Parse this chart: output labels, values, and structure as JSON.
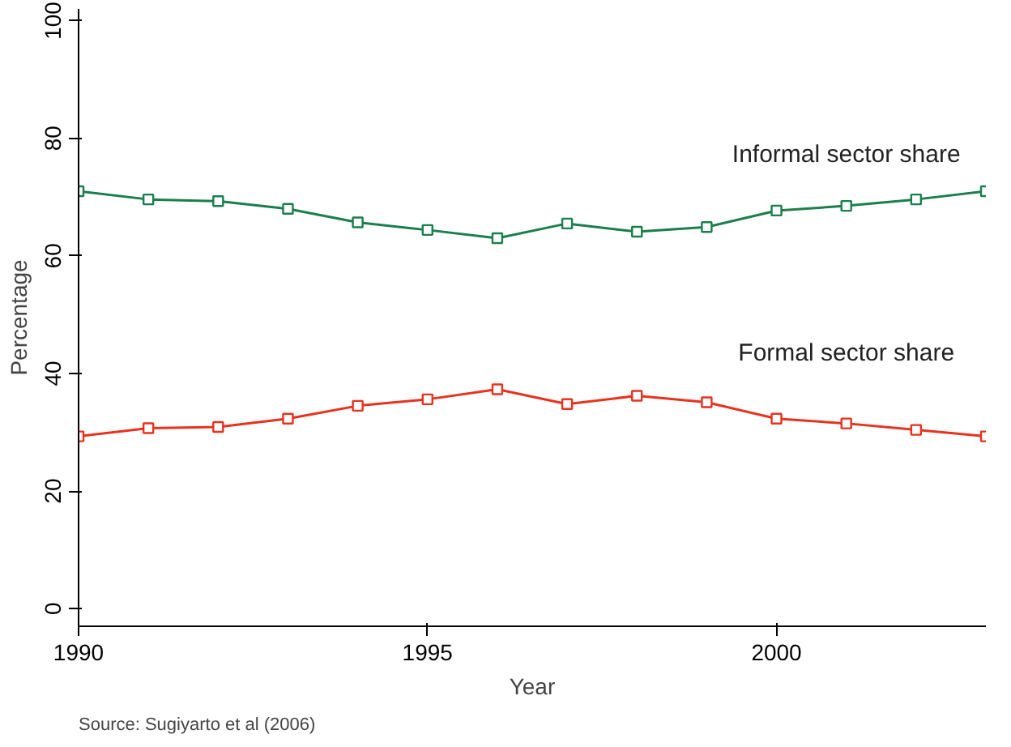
{
  "chart_data": {
    "type": "line",
    "xlabel": "Year",
    "ylabel": "Percentage",
    "x": [
      1990,
      1991,
      1992,
      1993,
      1994,
      1995,
      1996,
      1997,
      1998,
      1999,
      2000,
      2001,
      2002,
      2003
    ],
    "series": [
      {
        "name": "Informal sector share",
        "color": "#1a7f4b",
        "values": [
          71.0,
          69.6,
          69.3,
          68.0,
          65.7,
          64.4,
          63.0,
          65.5,
          64.1,
          64.9,
          67.7,
          68.5,
          69.6,
          71.0
        ]
      },
      {
        "name": "Formal sector share",
        "color": "#e8321e",
        "values": [
          29.3,
          30.7,
          30.9,
          32.3,
          34.5,
          35.6,
          37.3,
          34.8,
          36.2,
          35.1,
          32.3,
          31.5,
          30.4,
          29.3
        ]
      }
    ],
    "xlim": [
      1990,
      2003
    ],
    "ylim": [
      -3,
      102
    ],
    "xticks": [
      1990,
      1995,
      2000
    ],
    "yticks": [
      0,
      20,
      40,
      60,
      80,
      100
    ],
    "grid": false,
    "marker": "square",
    "line_style": "solid",
    "annotations": [
      "Source: Sugiyarto et al (2006)"
    ]
  }
}
